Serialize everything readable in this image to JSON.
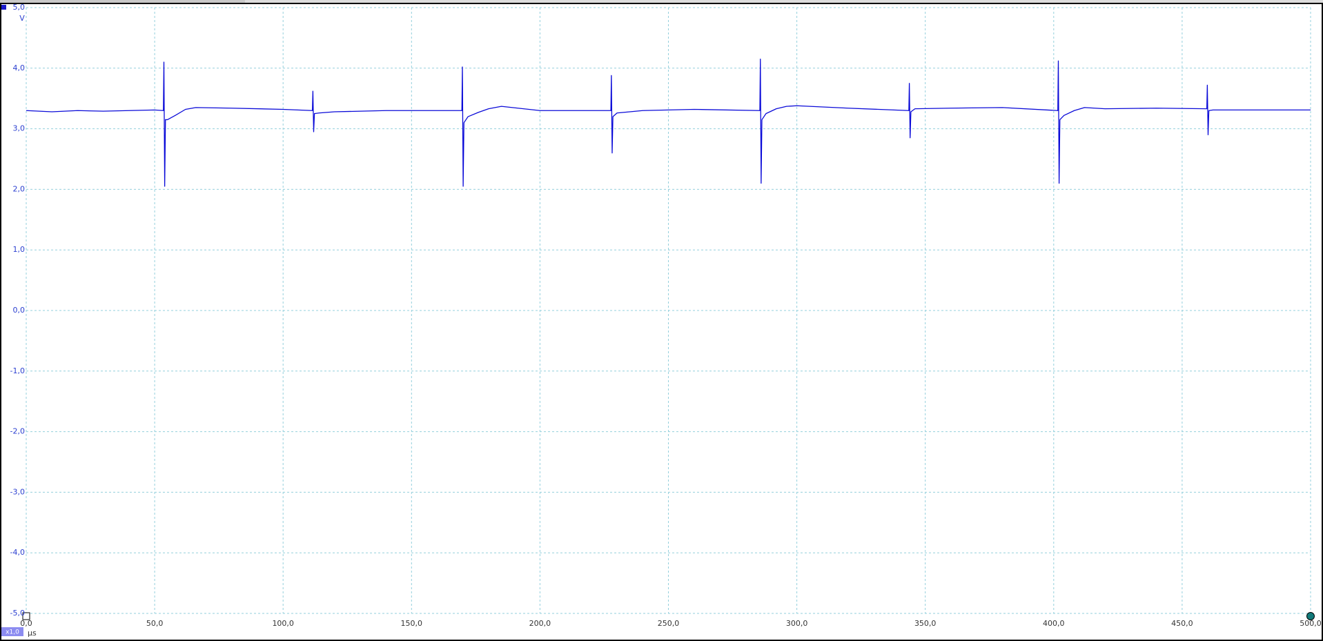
{
  "chart_data": {
    "type": "line",
    "y_unit": "V",
    "x_unit": "µs",
    "zoom_badge": "x1,0",
    "color": "#0a0ad8",
    "grid": true,
    "xlim": [
      0,
      500
    ],
    "ylim": [
      -5,
      5
    ],
    "xticks": [
      {
        "value": 0,
        "label": "0,0"
      },
      {
        "value": 50,
        "label": "50,0"
      },
      {
        "value": 100,
        "label": "100,0"
      },
      {
        "value": 150,
        "label": "150,0"
      },
      {
        "value": 200,
        "label": "200,0"
      },
      {
        "value": 250,
        "label": "250,0"
      },
      {
        "value": 300,
        "label": "300,0"
      },
      {
        "value": 350,
        "label": "350,0"
      },
      {
        "value": 400,
        "label": "400,0"
      },
      {
        "value": 450,
        "label": "450,0"
      },
      {
        "value": 500,
        "label": "500,0"
      }
    ],
    "yticks": [
      {
        "value": 5,
        "label": "5,0"
      },
      {
        "value": 4,
        "label": "4,0"
      },
      {
        "value": 3,
        "label": "3,0"
      },
      {
        "value": 2,
        "label": "2,0"
      },
      {
        "value": 1,
        "label": "1,0"
      },
      {
        "value": 0,
        "label": "0,0"
      },
      {
        "value": -1,
        "label": "-1,0"
      },
      {
        "value": -2,
        "label": "-2,0"
      },
      {
        "value": -3,
        "label": "-3,0"
      },
      {
        "value": -4,
        "label": "-4,0"
      },
      {
        "value": -5,
        "label": "-5,0"
      }
    ],
    "x": [
      0,
      10,
      20,
      30,
      40,
      50,
      53.4,
      53.6,
      53.9,
      54.2,
      55,
      58,
      62,
      66,
      80,
      100,
      111.4,
      111.6,
      111.9,
      112.2,
      114,
      120,
      140,
      169.6,
      169.8,
      170.1,
      170.4,
      172,
      176,
      180,
      185,
      200,
      227.6,
      227.8,
      228.1,
      228.4,
      230,
      240,
      260,
      285.6,
      285.8,
      286.1,
      286.4,
      288,
      292,
      296,
      300,
      320,
      343.6,
      343.8,
      344.1,
      344.4,
      346,
      360,
      380,
      401.6,
      401.8,
      402.1,
      402.4,
      404,
      408,
      412,
      420,
      440,
      459.6,
      459.8,
      460.1,
      460.4,
      462,
      480,
      500
    ],
    "values": [
      3.3,
      3.28,
      3.3,
      3.29,
      3.3,
      3.31,
      3.3,
      4.1,
      2.05,
      3.15,
      3.15,
      3.22,
      3.32,
      3.35,
      3.34,
      3.32,
      3.3,
      3.62,
      2.95,
      3.25,
      3.26,
      3.28,
      3.3,
      3.3,
      4.02,
      2.05,
      3.1,
      3.2,
      3.27,
      3.33,
      3.37,
      3.3,
      3.3,
      3.88,
      2.6,
      3.2,
      3.26,
      3.3,
      3.32,
      3.3,
      4.15,
      2.1,
      3.15,
      3.25,
      3.33,
      3.37,
      3.38,
      3.34,
      3.3,
      3.75,
      2.85,
      3.28,
      3.33,
      3.34,
      3.35,
      3.3,
      4.12,
      2.1,
      3.15,
      3.22,
      3.3,
      3.35,
      3.33,
      3.34,
      3.33,
      3.72,
      2.9,
      3.3,
      3.31,
      3.31,
      3.31
    ]
  }
}
